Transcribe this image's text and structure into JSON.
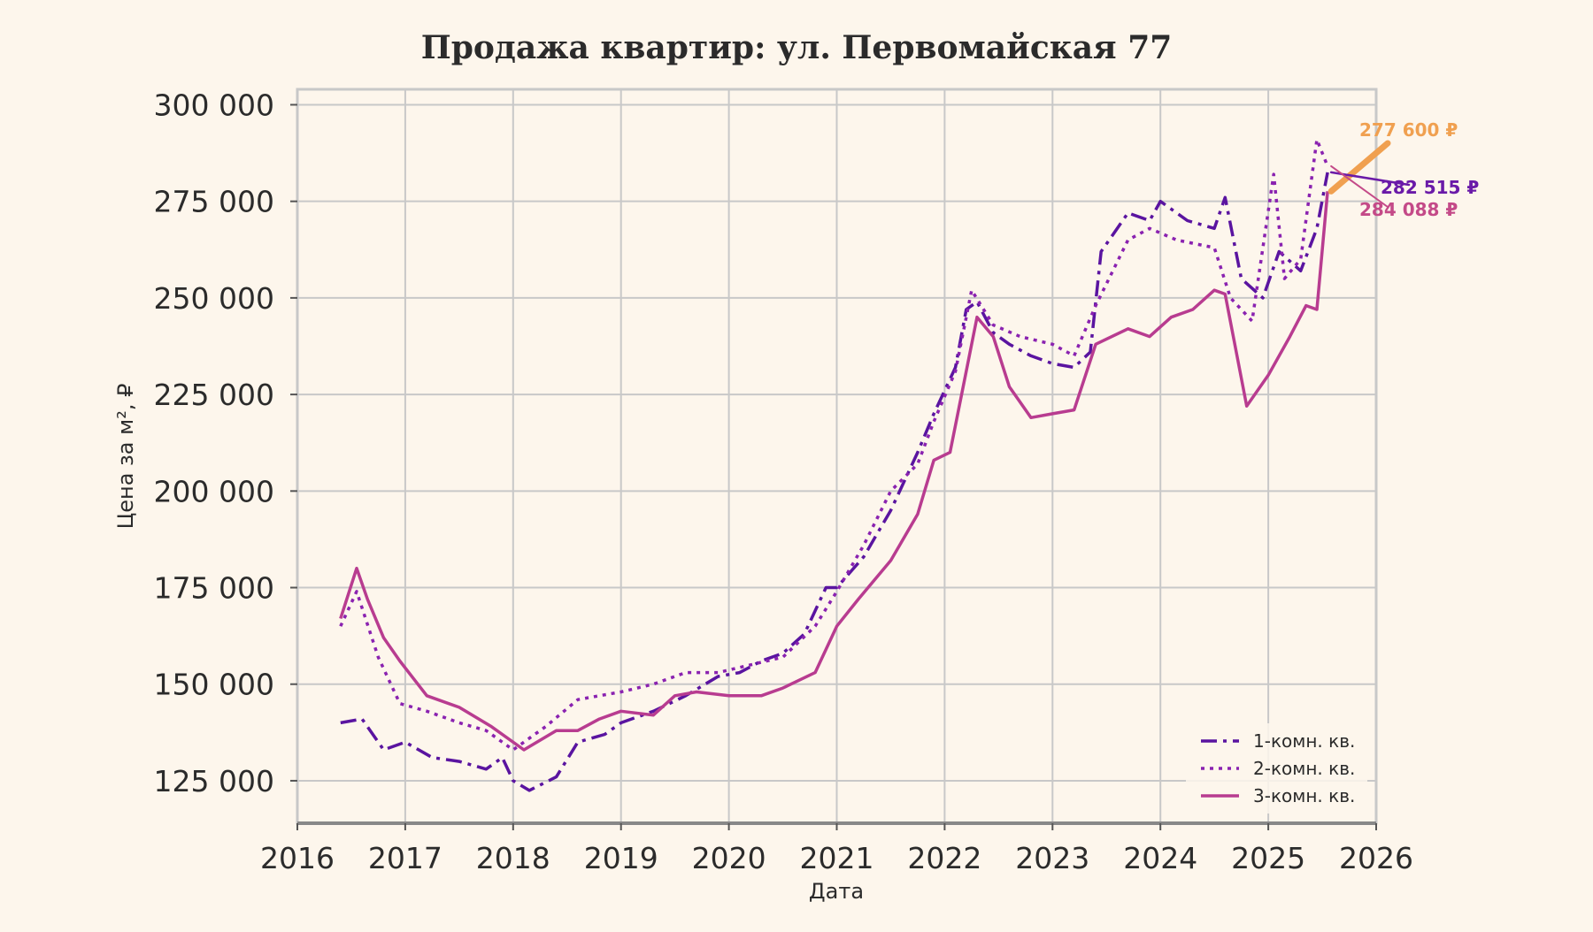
{
  "chart_data": {
    "type": "line",
    "title": "Продажа квартир: ул. Первомайская 77",
    "xlabel": "Дата",
    "ylabel": "Цена за м², ₽",
    "xlim": [
      2016.0,
      2026.0
    ],
    "ylim": [
      114000,
      304000
    ],
    "x_ticks": [
      {
        "value": 2016,
        "label": "2016"
      },
      {
        "value": 2017,
        "label": "2017"
      },
      {
        "value": 2018,
        "label": "2018"
      },
      {
        "value": 2019,
        "label": "2019"
      },
      {
        "value": 2020,
        "label": "2020"
      },
      {
        "value": 2021,
        "label": "2021"
      },
      {
        "value": 2022,
        "label": "2022"
      },
      {
        "value": 2023,
        "label": "2023"
      },
      {
        "value": 2024,
        "label": "2024"
      },
      {
        "value": 2025,
        "label": "2025"
      },
      {
        "value": 2026,
        "label": "2026"
      }
    ],
    "y_ticks": [
      {
        "value": 125000,
        "label": "125 000"
      },
      {
        "value": 150000,
        "label": "150 000"
      },
      {
        "value": 175000,
        "label": "175 000"
      },
      {
        "value": 200000,
        "label": "200 000"
      },
      {
        "value": 225000,
        "label": "225 000"
      },
      {
        "value": 250000,
        "label": "250 000"
      },
      {
        "value": 275000,
        "label": "275 000"
      },
      {
        "value": 300000,
        "label": "300 000"
      }
    ],
    "grid": true,
    "legend_position": "lower-right",
    "series": [
      {
        "name": "1-комн. кв.",
        "color": "#5a14a0",
        "style": "dashdot",
        "x": [
          2016.4,
          2016.6,
          2016.8,
          2017.0,
          2017.25,
          2017.5,
          2017.75,
          2017.9,
          2018.0,
          2018.15,
          2018.4,
          2018.6,
          2018.85,
          2019.0,
          2019.3,
          2019.6,
          2019.9,
          2020.1,
          2020.3,
          2020.5,
          2020.7,
          2020.9,
          2021.0,
          2021.25,
          2021.5,
          2021.75,
          2021.9,
          2022.1,
          2022.2,
          2022.3,
          2022.45,
          2022.6,
          2022.8,
          2023.0,
          2023.2,
          2023.35,
          2023.45,
          2023.7,
          2023.9,
          2024.0,
          2024.25,
          2024.5,
          2024.6,
          2024.75,
          2024.95,
          2025.1,
          2025.3,
          2025.45,
          2025.55
        ],
        "y": [
          140000,
          141000,
          133000,
          135000,
          131000,
          130000,
          128000,
          131000,
          125000,
          122500,
          126000,
          135000,
          137000,
          140000,
          143000,
          147000,
          152000,
          153000,
          156000,
          158000,
          163000,
          175000,
          175000,
          183000,
          195000,
          210000,
          220000,
          232000,
          247000,
          249000,
          241000,
          238000,
          235000,
          233000,
          232000,
          236000,
          262000,
          272000,
          270000,
          275000,
          270000,
          268000,
          276000,
          255000,
          250000,
          262000,
          257000,
          268000,
          282515
        ]
      },
      {
        "name": "2-комн. кв.",
        "color": "#8a22b0",
        "style": "dotted",
        "x": [
          2016.4,
          2016.55,
          2016.75,
          2016.95,
          2017.2,
          2017.5,
          2017.75,
          2018.0,
          2018.3,
          2018.6,
          2018.8,
          2019.0,
          2019.3,
          2019.6,
          2019.9,
          2020.2,
          2020.5,
          2020.8,
          2021.0,
          2021.25,
          2021.5,
          2021.75,
          2021.9,
          2022.1,
          2022.25,
          2022.45,
          2022.7,
          2023.0,
          2023.2,
          2023.4,
          2023.7,
          2023.9,
          2024.15,
          2024.5,
          2024.65,
          2024.85,
          2025.05,
          2025.15,
          2025.3,
          2025.45,
          2025.55
        ],
        "y": [
          165000,
          174000,
          157000,
          145000,
          143000,
          140000,
          138000,
          133000,
          139000,
          146000,
          147000,
          148000,
          150000,
          153000,
          153000,
          155000,
          157000,
          165000,
          174000,
          186000,
          200000,
          207000,
          218000,
          231000,
          252000,
          243000,
          240000,
          238000,
          235000,
          248000,
          265000,
          268000,
          265000,
          263000,
          250000,
          244000,
          282000,
          255000,
          260000,
          291000,
          284088
        ]
      },
      {
        "name": "3-комн. кв.",
        "color": "#b83c90",
        "style": "solid",
        "x": [
          2016.4,
          2016.55,
          2016.65,
          2016.8,
          2016.95,
          2017.2,
          2017.5,
          2017.8,
          2018.1,
          2018.4,
          2018.6,
          2018.8,
          2019.0,
          2019.3,
          2019.5,
          2019.7,
          2020.0,
          2020.3,
          2020.5,
          2020.8,
          2021.0,
          2021.2,
          2021.5,
          2021.75,
          2021.9,
          2022.05,
          2022.15,
          2022.3,
          2022.45,
          2022.6,
          2022.8,
          2023.0,
          2023.2,
          2023.4,
          2023.7,
          2023.9,
          2024.1,
          2024.3,
          2024.5,
          2024.6,
          2024.8,
          2025.0,
          2025.2,
          2025.35,
          2025.45,
          2025.55
        ],
        "y": [
          167000,
          180000,
          172000,
          162000,
          156000,
          147000,
          144000,
          139000,
          133000,
          138000,
          138000,
          141000,
          143000,
          142000,
          147000,
          148000,
          147000,
          147000,
          149000,
          153000,
          165000,
          172000,
          182000,
          194000,
          208000,
          210000,
          224000,
          245000,
          240000,
          227000,
          219000,
          220000,
          221000,
          238000,
          242000,
          240000,
          245000,
          247000,
          252000,
          251000,
          222000,
          230000,
          240000,
          248000,
          247000,
          277600
        ]
      }
    ],
    "annotations": [
      {
        "text": "277 600 ₽",
        "color": "#f0a050",
        "series": "3-комн. кв."
      },
      {
        "text": "282 515 ₽",
        "color": "#6a1aa8",
        "series": "1-комн. кв."
      },
      {
        "text": "284 088 ₽",
        "color": "#c44a88",
        "series": "2-комн. кв."
      }
    ]
  }
}
